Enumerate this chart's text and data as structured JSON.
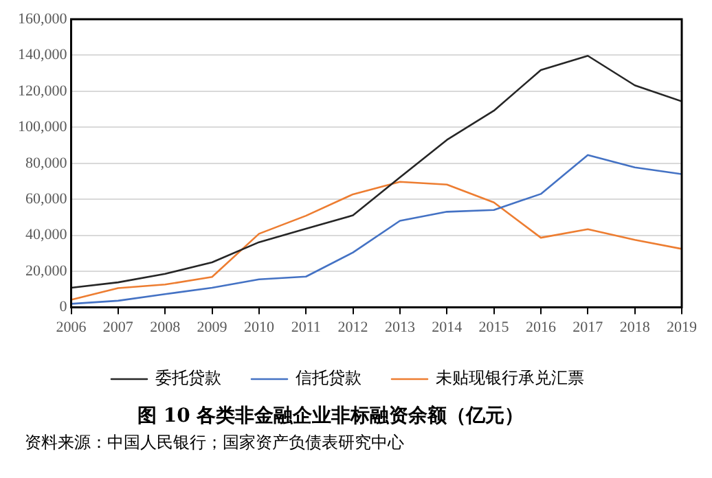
{
  "chart_data": {
    "type": "line",
    "title": "图 10 各类非金融企业非标融资余额（亿元）",
    "annotations": [
      "资料来源：中国人民银行；国家资产负债表研究中心"
    ],
    "x": [
      2006,
      2007,
      2008,
      2009,
      2010,
      2011,
      2012,
      2013,
      2014,
      2015,
      2016,
      2017,
      2018,
      2019
    ],
    "series": [
      {
        "name": "委托贷款",
        "color": "#262626",
        "values": [
          10900,
          13900,
          18600,
          25000,
          36200,
          43700,
          51100,
          72200,
          93000,
          109200,
          131800,
          139700,
          123300,
          114400
        ]
      },
      {
        "name": "信托贷款",
        "color": "#4472c4",
        "values": [
          2000,
          3700,
          7400,
          10900,
          15600,
          17100,
          30500,
          48100,
          53100,
          54100,
          63000,
          84600,
          77700,
          74000
        ]
      },
      {
        "name": "未贴现银行承兑汇票",
        "color": "#ed7d31",
        "values": [
          4200,
          10700,
          12700,
          16900,
          40900,
          50900,
          62800,
          69700,
          68200,
          58300,
          38700,
          43400,
          37500,
          32500
        ]
      }
    ],
    "xlim": [
      2006,
      2019
    ],
    "xticks": [
      2006,
      2007,
      2008,
      2009,
      2010,
      2011,
      2012,
      2013,
      2014,
      2015,
      2016,
      2017,
      2018,
      2019
    ],
    "ylim": [
      0,
      160000
    ],
    "yticks": [
      0,
      {
        "value": 20000,
        "label": "20,000"
      },
      {
        "value": 40000,
        "label": "40,000"
      },
      {
        "value": 60000,
        "label": "60,000"
      },
      {
        "value": 80000,
        "label": "80,000"
      },
      {
        "value": 100000,
        "label": "100,000"
      },
      {
        "value": 120000,
        "label": "120,000"
      },
      {
        "value": 140000,
        "label": "140,000"
      },
      {
        "value": 160000,
        "label": "160,000"
      }
    ],
    "grid": "y",
    "legend": "bottom",
    "marker": "none",
    "line_style": "solid"
  }
}
